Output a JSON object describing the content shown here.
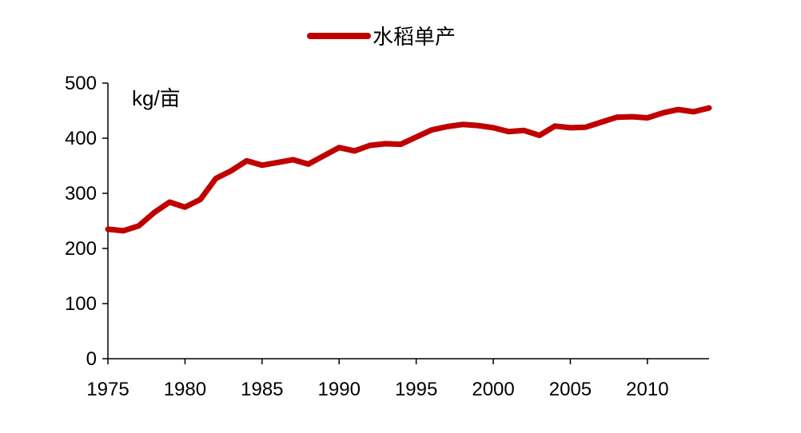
{
  "chart_data": {
    "type": "line",
    "ylabel": "kg/亩",
    "legend": {
      "position": "top-center"
    },
    "series": [
      {
        "name": "水稻单产",
        "color": "#c00000",
        "x": [
          1975,
          1976,
          1977,
          1978,
          1979,
          1980,
          1981,
          1982,
          1983,
          1984,
          1985,
          1986,
          1987,
          1988,
          1989,
          1990,
          1991,
          1992,
          1993,
          1994,
          1995,
          1996,
          1997,
          1998,
          1999,
          2000,
          2001,
          2002,
          2003,
          2004,
          2005,
          2006,
          2007,
          2008,
          2009,
          2010,
          2011,
          2012,
          2013,
          2014
        ],
        "values": [
          235,
          232,
          241,
          265,
          284,
          275,
          289,
          327,
          341,
          359,
          351,
          356,
          361,
          353,
          368,
          383,
          377,
          387,
          390,
          389,
          402,
          415,
          421,
          425,
          423,
          419,
          412,
          414,
          405,
          422,
          419,
          420,
          429,
          438,
          439,
          437,
          446,
          452,
          448,
          455
        ]
      }
    ],
    "xlim": [
      1975,
      2014
    ],
    "ylim": [
      0,
      500
    ],
    "x_ticks": [
      "1975",
      "1980",
      "1985",
      "1990",
      "1995",
      "2000",
      "2005",
      "2010"
    ],
    "y_ticks": [
      "0",
      "100",
      "200",
      "300",
      "400",
      "500"
    ],
    "grid": false
  }
}
